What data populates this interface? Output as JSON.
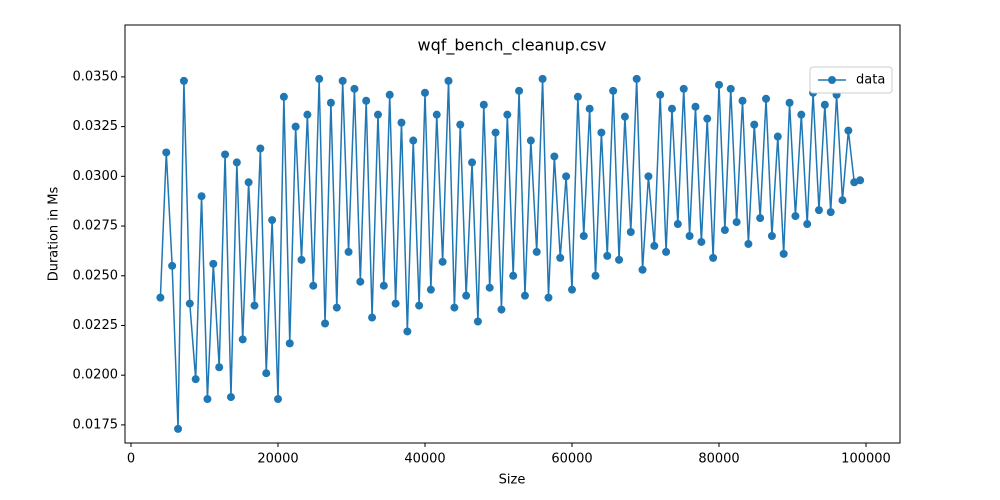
{
  "chart_data": {
    "type": "line",
    "title": "wqf_bench_cleanup.csv",
    "xlabel": "Size",
    "ylabel": "Duration in Ms",
    "x": [
      4000,
      4800,
      5600,
      6400,
      7200,
      8000,
      8800,
      9600,
      10400,
      11200,
      12000,
      12800,
      13600,
      14400,
      15200,
      16000,
      16800,
      17600,
      18400,
      19200,
      20000,
      20800,
      21600,
      22400,
      23200,
      24000,
      24800,
      25600,
      26400,
      27200,
      28000,
      28800,
      29600,
      30400,
      31200,
      32000,
      32800,
      33600,
      34400,
      35200,
      36000,
      36800,
      37600,
      38400,
      39200,
      40000,
      40800,
      41600,
      42400,
      43200,
      44000,
      44800,
      45600,
      46400,
      47200,
      48000,
      48800,
      49600,
      50400,
      51200,
      52000,
      52800,
      53600,
      54400,
      55200,
      56000,
      56800,
      57600,
      58400,
      59200,
      60000,
      60800,
      61600,
      62400,
      63200,
      64000,
      64800,
      65600,
      66400,
      67200,
      68000,
      68800,
      69600,
      70400,
      71200,
      72000,
      72800,
      73600,
      74400,
      75200,
      76000,
      76800,
      77600,
      78400,
      79200,
      80000,
      80800,
      81600,
      82400,
      83200,
      84000,
      84800,
      85600,
      86400,
      87200,
      88000,
      88800,
      89600,
      90400,
      91200,
      92000,
      92800,
      93600,
      94400,
      95200,
      96000,
      96800,
      97600,
      98400,
      99200
    ],
    "series": [
      {
        "name": "data",
        "color": "#1f77b4",
        "values": [
          0.0239,
          0.0312,
          0.0255,
          0.0173,
          0.0348,
          0.0236,
          0.0198,
          0.029,
          0.0188,
          0.0256,
          0.0204,
          0.0311,
          0.0189,
          0.0307,
          0.0218,
          0.0297,
          0.0235,
          0.0314,
          0.0201,
          0.0278,
          0.0188,
          0.034,
          0.0216,
          0.0325,
          0.0258,
          0.0331,
          0.0245,
          0.0349,
          0.0226,
          0.0337,
          0.0234,
          0.0348,
          0.0262,
          0.0344,
          0.0247,
          0.0338,
          0.0229,
          0.0331,
          0.0245,
          0.0341,
          0.0236,
          0.0327,
          0.0222,
          0.0318,
          0.0235,
          0.0342,
          0.0243,
          0.0331,
          0.0257,
          0.0348,
          0.0234,
          0.0326,
          0.024,
          0.0307,
          0.0227,
          0.0336,
          0.0244,
          0.0322,
          0.0233,
          0.0331,
          0.025,
          0.0343,
          0.024,
          0.0318,
          0.0262,
          0.0349,
          0.0239,
          0.031,
          0.0259,
          0.03,
          0.0243,
          0.034,
          0.027,
          0.0334,
          0.025,
          0.0322,
          0.026,
          0.0343,
          0.0258,
          0.033,
          0.0272,
          0.0349,
          0.0253,
          0.03,
          0.0265,
          0.0341,
          0.0262,
          0.0334,
          0.0276,
          0.0344,
          0.027,
          0.0335,
          0.0267,
          0.0329,
          0.0259,
          0.0346,
          0.0273,
          0.0344,
          0.0277,
          0.0338,
          0.0266,
          0.0326,
          0.0279,
          0.0339,
          0.027,
          0.032,
          0.0261,
          0.0337,
          0.028,
          0.0331,
          0.0276,
          0.0342,
          0.0283,
          0.0336,
          0.0282,
          0.0341,
          0.0288,
          0.0323,
          0.0297,
          0.0298
        ]
      }
    ],
    "xlim": [
      -816,
      104626
    ],
    "xticks": [
      0,
      20000,
      40000,
      60000,
      80000,
      100000
    ],
    "ylim": [
      0.01659,
      0.03761
    ],
    "yticks": [
      0.0175,
      {
        "value": 0.02,
        "label": "0.0200"
      },
      0.0225,
      {
        "value": 0.025,
        "label": "0.0250"
      },
      0.0275,
      {
        "value": 0.03,
        "label": "0.0300"
      },
      0.0325,
      {
        "value": 0.035,
        "label": "0.0350"
      }
    ],
    "grid": false,
    "legend": "upper right"
  }
}
